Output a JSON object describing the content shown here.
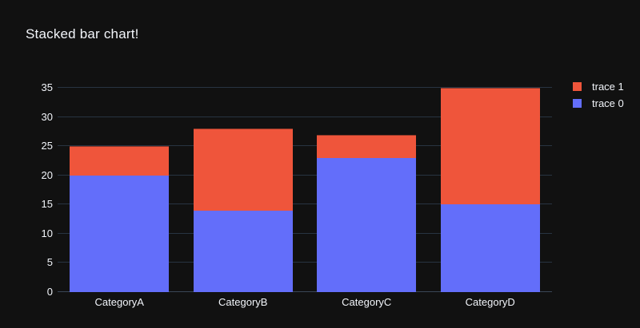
{
  "title": "Stacked bar chart!",
  "colors": {
    "background": "#111111",
    "text": "#f2f5fa",
    "gridline": "#283442",
    "trace0": "#636efa",
    "trace1": "#ef553b"
  },
  "chart_data": {
    "type": "bar",
    "stacked": true,
    "title": "Stacked bar chart!",
    "categories": [
      "CategoryA",
      "CategoryB",
      "CategoryC",
      "CategoryD"
    ],
    "series": [
      {
        "name": "trace 0",
        "color": "#636efa",
        "values": [
          20,
          14,
          23,
          15
        ]
      },
      {
        "name": "trace 1",
        "color": "#ef553b",
        "values": [
          5,
          14,
          4,
          20
        ]
      }
    ],
    "stack_totals": [
      25,
      28,
      27,
      35
    ],
    "xlabel": "",
    "ylabel": "",
    "yticks": [
      0,
      5,
      10,
      15,
      20,
      25,
      30,
      35
    ],
    "ylim": [
      0,
      38
    ],
    "grid": true,
    "legend_position": "top-right",
    "legend_order_top_to_bottom": [
      "trace 1",
      "trace 0"
    ]
  },
  "legend": {
    "items": [
      {
        "label": "trace 1",
        "color": "#ef553b"
      },
      {
        "label": "trace 0",
        "color": "#636efa"
      }
    ]
  }
}
